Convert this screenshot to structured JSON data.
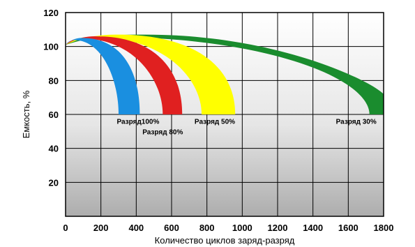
{
  "chart_data": {
    "type": "area",
    "xlabel": "Количество циклов заряд-разряд",
    "ylabel": "Емкость, %",
    "xlim": [
      0,
      1800
    ],
    "ylim": [
      0,
      120
    ],
    "xticks": [
      0,
      200,
      400,
      600,
      800,
      1000,
      1200,
      1400,
      1600,
      1800
    ],
    "yticks": [
      20,
      40,
      60,
      80,
      100,
      120
    ],
    "x_tick_labels": [
      "0",
      "200",
      "400",
      "600",
      "800",
      "1000",
      "1200",
      "1400",
      "1600",
      "1800"
    ],
    "y_tick_labels": [
      "20",
      "40",
      "60",
      "80",
      "100",
      "120"
    ],
    "grid": true,
    "series": [
      {
        "name": "Разряд 30%",
        "color": "#1a8c2e",
        "peak": [
          420,
          107
        ],
        "bottom_left": 1720,
        "bottom_right": 1800,
        "right_top": 72
      },
      {
        "name": "Разряд 50%",
        "color": "#ffff00",
        "peak": [
          300,
          107
        ],
        "bottom_left": 770,
        "bottom_right": 960
      },
      {
        "name": "Разряд 80%",
        "color": "#e02020",
        "peak": [
          180,
          106
        ],
        "bottom_left": 550,
        "bottom_right": 660
      },
      {
        "name": "Разряд100%",
        "color": "#1a8fe0",
        "peak": [
          100,
          105
        ],
        "bottom_left": 300,
        "bottom_right": 420
      }
    ],
    "annotations": [
      {
        "text": "Разряд100%",
        "x": 290,
        "y": 56
      },
      {
        "text": "Разряд 80%",
        "x": 435,
        "y": 50
      },
      {
        "text": "Разряд 50%",
        "x": 730,
        "y": 56
      },
      {
        "text": "Разряд 30%",
        "x": 1530,
        "y": 56
      }
    ],
    "start": [
      0,
      101
    ],
    "floor_y": 60
  }
}
